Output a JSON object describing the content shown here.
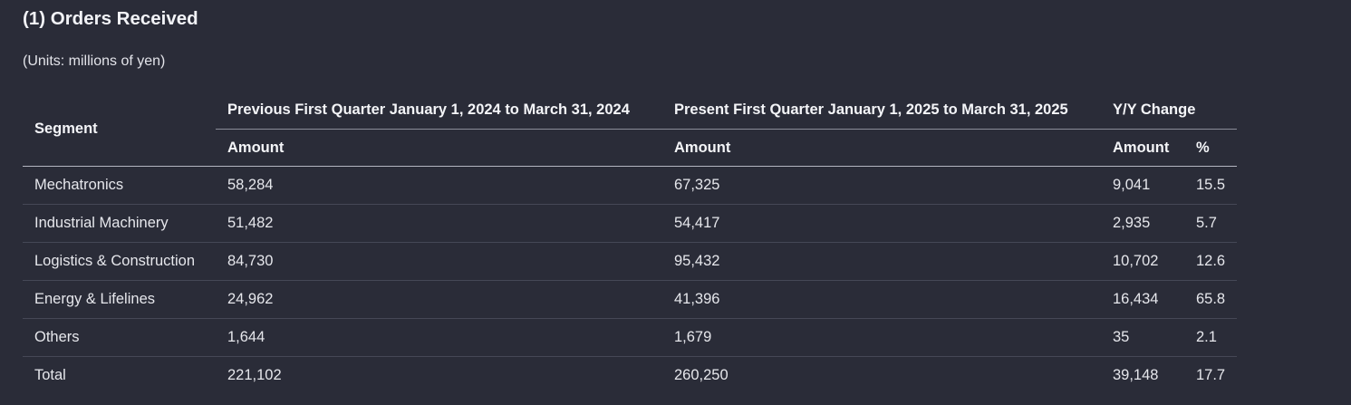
{
  "title": "(1) Orders Received",
  "units": "(Units: millions of yen)",
  "table": {
    "headers": {
      "segment": "Segment",
      "previous": "Previous First Quarter January 1, 2024 to March 31, 2024",
      "present": "Present First Quarter January 1, 2025 to March 31, 2025",
      "yoy": "Y/Y Change",
      "amount": "Amount",
      "percent": "%"
    },
    "rows": [
      {
        "segment": "Mechatronics",
        "previous": "58,284",
        "present": "67,325",
        "change": "9,041",
        "percent": "15.5"
      },
      {
        "segment": "Industrial Machinery",
        "previous": "51,482",
        "present": "54,417",
        "change": "2,935",
        "percent": "5.7"
      },
      {
        "segment": "Logistics & Construction",
        "previous": "84,730",
        "present": "95,432",
        "change": "10,702",
        "percent": "12.6"
      },
      {
        "segment": "Energy & Lifelines",
        "previous": "24,962",
        "present": "41,396",
        "change": "16,434",
        "percent": "65.8"
      },
      {
        "segment": "Others",
        "previous": "1,644",
        "present": "1,679",
        "change": "35",
        "percent": "2.1"
      },
      {
        "segment": "Total",
        "previous": "221,102",
        "present": "260,250",
        "change": "39,148",
        "percent": "17.7"
      }
    ]
  }
}
